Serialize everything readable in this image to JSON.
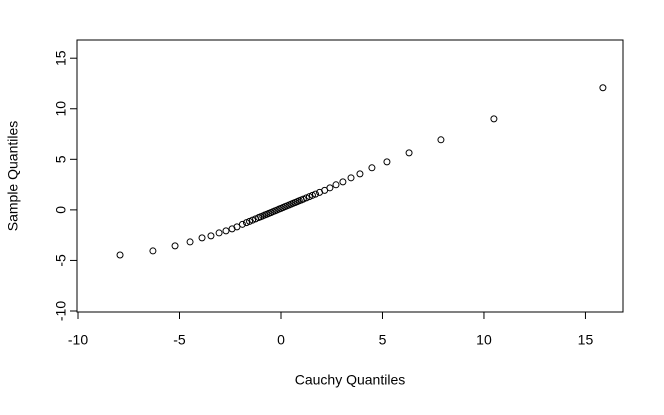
{
  "chart_data": {
    "type": "scatter",
    "x_label": "Cauchy Quantiles",
    "y_label": "Sample Quantiles",
    "x": [
      -7.93,
      -6.31,
      -5.22,
      -4.48,
      -3.89,
      -3.45,
      -3.05,
      -2.71,
      -2.41,
      -2.17,
      -1.9,
      -1.7,
      -1.55,
      -1.4,
      -1.25,
      -1.1,
      -1.0,
      -0.9,
      -0.8,
      -0.7,
      -0.6,
      -0.5,
      -0.4,
      -0.3,
      -0.2,
      -0.1,
      0,
      0.1,
      0.2,
      0.3,
      0.4,
      0.5,
      0.6,
      0.7,
      0.8,
      0.9,
      1.0,
      1.1,
      1.25,
      1.4,
      1.55,
      1.7,
      1.9,
      2.15,
      2.41,
      2.71,
      3.05,
      3.45,
      3.89,
      4.48,
      5.22,
      6.31,
      7.88,
      10.49,
      15.86
    ],
    "values": [
      -4.46,
      -4.06,
      -3.56,
      -3.17,
      -2.77,
      -2.57,
      -2.28,
      -2.08,
      -1.88,
      -1.68,
      -1.43,
      -1.26,
      -1.14,
      -1.01,
      -0.89,
      -0.76,
      -0.68,
      -0.6,
      -0.51,
      -0.43,
      -0.35,
      -0.27,
      -0.18,
      -0.1,
      -0.02,
      0.07,
      0.15,
      0.23,
      0.32,
      0.4,
      0.48,
      0.57,
      0.65,
      0.73,
      0.81,
      0.9,
      0.98,
      1.06,
      1.19,
      1.31,
      1.44,
      1.56,
      1.73,
      1.93,
      2.18,
      2.48,
      2.77,
      3.17,
      3.56,
      4.16,
      4.75,
      5.64,
      6.93,
      9.0,
      12.08
    ],
    "color": "#000000",
    "xlim": [
      -10.05,
      16.85
    ],
    "ylim": [
      -10.1,
      16.8
    ],
    "xticks": [
      -10,
      -5,
      0,
      5,
      10,
      15
    ],
    "yticks": [
      -10,
      -5,
      0,
      5,
      10,
      15
    ],
    "grid": false
  }
}
